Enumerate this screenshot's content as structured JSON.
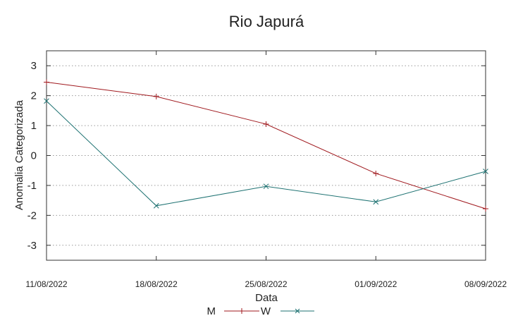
{
  "chart_data": {
    "type": "line",
    "title": "Rio Japurá",
    "xlabel": "Data",
    "ylabel": "Anomalia Categorizada",
    "categories": [
      "11/08/2022",
      "18/08/2022",
      "25/08/2022",
      "01/09/2022",
      "08/09/2022"
    ],
    "yticks": [
      3,
      2,
      1,
      0,
      -1,
      -2,
      -3
    ],
    "ylim": [
      -3.5,
      3.5
    ],
    "grid": "horizontal-dotted",
    "legend": "bottom-center",
    "series": [
      {
        "name": "M",
        "color": "#a0191e",
        "marker": "plus",
        "values": [
          2.45,
          1.97,
          1.05,
          -0.6,
          -1.78
        ]
      },
      {
        "name": "W",
        "color": "#1e7272",
        "marker": "cross",
        "values": [
          1.82,
          -1.68,
          -1.03,
          -1.55,
          -0.53
        ]
      }
    ]
  }
}
